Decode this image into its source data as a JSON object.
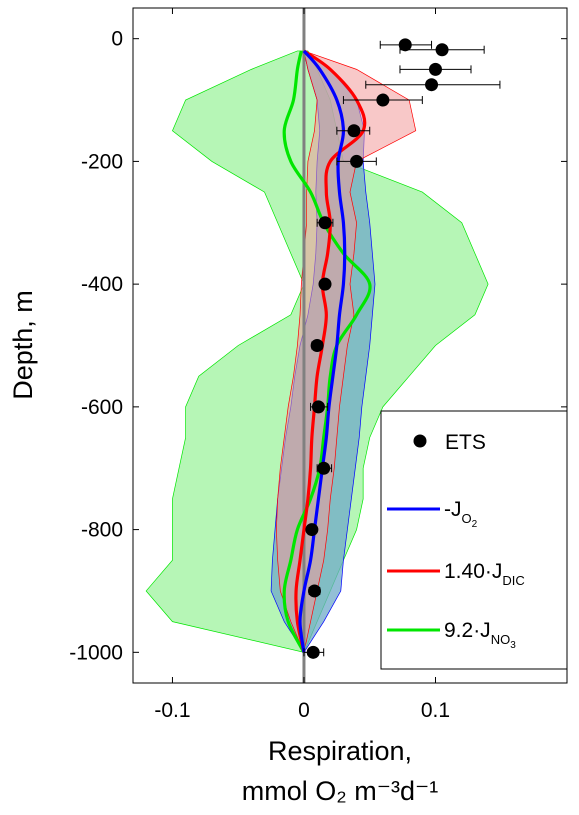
{
  "chart_data": {
    "type": "line",
    "title": "",
    "xlabel_line1": "Respiration,",
    "xlabel_line2": "mmol O₂ m⁻³d⁻¹",
    "ylabel": "Depth, m",
    "xlim": [
      -0.13,
      0.2
    ],
    "ylim": [
      -1050,
      50
    ],
    "x_ticks": [
      -0.1,
      0,
      0.1
    ],
    "x_tick_labels": [
      "-0.1",
      "0",
      "0.1"
    ],
    "y_ticks": [
      0,
      -200,
      -400,
      -600,
      -800,
      -1000
    ],
    "y_tick_labels": [
      "0",
      "-200",
      "-400",
      "-600",
      "-800",
      "-1000"
    ],
    "grid": false,
    "legend_position": "bottom-right",
    "legend": {
      "ets": "ETS",
      "o2": "-J",
      "o2_sub": "O",
      "o2_subsub": "2",
      "dic": "1.40·J",
      "dic_sub": "DIC",
      "no3": "9.2·J",
      "no3_sub": "NO",
      "no3_subsub": "3"
    },
    "colors": {
      "o2_line": "#0000ff",
      "o2_band": "#6fa9c8",
      "dic_line": "#ff0000",
      "dic_band": "#f39a9a",
      "no3_line": "#00e600",
      "no3_band": "#aef5ae",
      "zero_line": "#808080",
      "ets": "#000000"
    },
    "ets_points": [
      {
        "x": 0.077,
        "y": -10,
        "xerr": [
          0.058,
          0.097
        ]
      },
      {
        "x": 0.105,
        "y": -18,
        "xerr": [
          0.073,
          0.137
        ]
      },
      {
        "x": 0.1,
        "y": -50,
        "xerr": [
          0.073,
          0.127
        ]
      },
      {
        "x": 0.097,
        "y": -75,
        "xerr": [
          0.047,
          0.149
        ]
      },
      {
        "x": 0.06,
        "y": -100,
        "xerr": [
          0.03,
          0.09
        ]
      },
      {
        "x": 0.038,
        "y": -150,
        "xerr": [
          0.025,
          0.05
        ]
      },
      {
        "x": 0.04,
        "y": -200,
        "xerr": [
          0.025,
          0.055
        ]
      },
      {
        "x": 0.016,
        "y": -300,
        "xerr": [
          0.01,
          0.022
        ]
      },
      {
        "x": 0.016,
        "y": -400,
        "xerr": [
          0.013,
          0.019
        ]
      },
      {
        "x": 0.01,
        "y": -500,
        "xerr": [
          0.006,
          0.014
        ]
      },
      {
        "x": 0.011,
        "y": -600,
        "xerr": [
          0.005,
          0.018
        ]
      },
      {
        "x": 0.015,
        "y": -700,
        "xerr": [
          0.01,
          0.021
        ]
      },
      {
        "x": 0.006,
        "y": -800,
        "xerr": [
          0.003,
          0.009
        ]
      },
      {
        "x": 0.008,
        "y": -900,
        "xerr": [
          0.004,
          0.012
        ]
      },
      {
        "x": 0.007,
        "y": -1000,
        "xerr": [
          0.0,
          0.015
        ]
      }
    ],
    "series": [
      {
        "key": "o2",
        "depth": [
          -20,
          -50,
          -100,
          -150,
          -200,
          -250,
          -300,
          -350,
          -400,
          -450,
          -500,
          -550,
          -600,
          -650,
          -700,
          -750,
          -800,
          -850,
          -900,
          -950,
          -1000
        ],
        "mean": [
          0.0,
          0.012,
          0.025,
          0.03,
          0.026,
          0.027,
          0.03,
          0.031,
          0.03,
          0.027,
          0.025,
          0.022,
          0.019,
          0.017,
          0.014,
          0.011,
          0.008,
          0.005,
          0.0,
          -0.003,
          0.0
        ],
        "lower": [
          0.0,
          0.003,
          0.01,
          0.012,
          0.01,
          0.009,
          0.01,
          0.009,
          0.007,
          0.003,
          -0.003,
          -0.007,
          -0.01,
          -0.014,
          -0.017,
          -0.02,
          -0.022,
          -0.024,
          -0.025,
          -0.015,
          0.0
        ],
        "upper": [
          0.0,
          0.02,
          0.04,
          0.046,
          0.045,
          0.047,
          0.05,
          0.052,
          0.054,
          0.052,
          0.05,
          0.047,
          0.044,
          0.042,
          0.039,
          0.036,
          0.033,
          0.03,
          0.028,
          0.015,
          0.0
        ]
      },
      {
        "key": "dic",
        "depth": [
          -20,
          -50,
          -100,
          -150,
          -200,
          -250,
          -300,
          -350,
          -400,
          -450,
          -500,
          -550,
          -600,
          -650,
          -700,
          -750,
          -800,
          -850,
          -900,
          -950,
          -1000
        ],
        "mean": [
          0.0,
          0.02,
          0.04,
          0.045,
          0.02,
          0.017,
          0.02,
          0.018,
          0.014,
          0.017,
          0.014,
          0.01,
          0.008,
          0.006,
          0.005,
          0.003,
          0.0,
          -0.003,
          -0.006,
          -0.005,
          0.0
        ],
        "lower": [
          0.0,
          0.003,
          0.01,
          0.008,
          0.003,
          0.002,
          0.002,
          0.0,
          -0.002,
          -0.003,
          -0.005,
          -0.008,
          -0.012,
          -0.015,
          -0.018,
          -0.02,
          -0.021,
          -0.02,
          -0.018,
          -0.01,
          0.0
        ],
        "upper": [
          0.0,
          0.04,
          0.08,
          0.085,
          0.04,
          0.035,
          0.04,
          0.038,
          0.035,
          0.038,
          0.033,
          0.03,
          0.027,
          0.025,
          0.023,
          0.02,
          0.018,
          0.015,
          0.01,
          0.005,
          0.0
        ]
      },
      {
        "key": "no3",
        "depth": [
          -20,
          -50,
          -100,
          -150,
          -200,
          -250,
          -300,
          -350,
          -400,
          -450,
          -500,
          -550,
          -600,
          -650,
          -700,
          -750,
          -800,
          -850,
          -900,
          -950,
          -1000
        ],
        "mean": [
          -0.002,
          -0.005,
          -0.008,
          -0.015,
          -0.01,
          0.005,
          0.015,
          0.03,
          0.05,
          0.04,
          0.025,
          0.02,
          0.018,
          0.015,
          0.012,
          0.005,
          -0.005,
          -0.01,
          -0.015,
          -0.012,
          0.0
        ],
        "lower": [
          -0.005,
          -0.04,
          -0.09,
          -0.1,
          -0.07,
          -0.03,
          -0.02,
          -0.01,
          0.0,
          -0.01,
          -0.05,
          -0.08,
          -0.09,
          -0.09,
          -0.095,
          -0.1,
          -0.1,
          -0.1,
          -0.12,
          -0.1,
          0.0
        ],
        "upper": [
          0.003,
          0.01,
          0.02,
          0.025,
          0.03,
          0.09,
          0.12,
          0.13,
          0.14,
          0.13,
          0.1,
          0.08,
          0.06,
          0.05,
          0.045,
          0.045,
          0.04,
          0.03,
          0.02,
          0.01,
          0.0
        ]
      }
    ]
  }
}
